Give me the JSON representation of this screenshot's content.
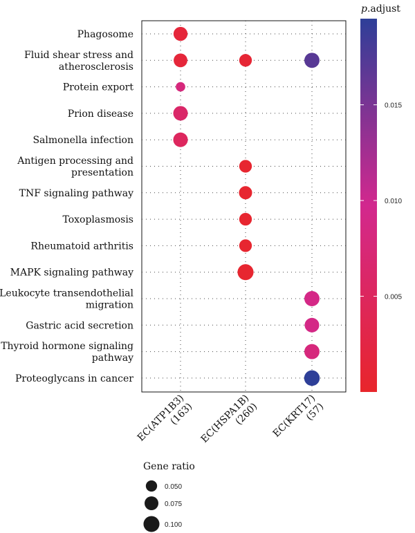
{
  "chart_data": {
    "type": "scatter",
    "subtype": "dot-plot",
    "x_categories": [
      [
        "EC(ATP1B3)",
        "(163)"
      ],
      [
        "EC(HSPA1B)",
        "(260)"
      ],
      [
        "EC(KRT17)",
        "(57)"
      ]
    ],
    "y_terms": [
      [
        "Phagosome"
      ],
      [
        "Fluid shear stress and",
        "atherosclerosis"
      ],
      [
        "Protein export"
      ],
      [
        "Prion disease"
      ],
      [
        "Salmonella infection"
      ],
      [
        "Antigen processing and",
        "presentation"
      ],
      [
        "TNF signaling pathway"
      ],
      [
        "Toxoplasmosis"
      ],
      [
        "Rheumatoid arthritis"
      ],
      [
        "MAPK signaling pathway"
      ],
      [
        "Leukocyte transendothelial",
        "migration"
      ],
      [
        "Gastric acid secretion"
      ],
      [
        "Thyroid hormone signaling",
        "pathway"
      ],
      [
        "Proteoglycans in cancer"
      ]
    ],
    "points": [
      {
        "x": 0,
        "y": 0,
        "gene_ratio": 0.077,
        "p_adjust": 0.0015
      },
      {
        "x": 0,
        "y": 1,
        "gene_ratio": 0.074,
        "p_adjust": 0.0015
      },
      {
        "x": 1,
        "y": 1,
        "gene_ratio": 0.063,
        "p_adjust": 0.001
      },
      {
        "x": 2,
        "y": 1,
        "gene_ratio": 0.09,
        "p_adjust": 0.017
      },
      {
        "x": 0,
        "y": 2,
        "gene_ratio": 0.035,
        "p_adjust": 0.008
      },
      {
        "x": 0,
        "y": 3,
        "gene_ratio": 0.083,
        "p_adjust": 0.006
      },
      {
        "x": 0,
        "y": 4,
        "gene_ratio": 0.083,
        "p_adjust": 0.005
      },
      {
        "x": 1,
        "y": 5,
        "gene_ratio": 0.063,
        "p_adjust": 0.0005
      },
      {
        "x": 1,
        "y": 6,
        "gene_ratio": 0.068,
        "p_adjust": 0.0005
      },
      {
        "x": 1,
        "y": 7,
        "gene_ratio": 0.063,
        "p_adjust": 0.0005
      },
      {
        "x": 1,
        "y": 8,
        "gene_ratio": 0.063,
        "p_adjust": 0.0005
      },
      {
        "x": 1,
        "y": 9,
        "gene_ratio": 0.1,
        "p_adjust": 0.0005
      },
      {
        "x": 2,
        "y": 10,
        "gene_ratio": 0.09,
        "p_adjust": 0.009
      },
      {
        "x": 2,
        "y": 11,
        "gene_ratio": 0.083,
        "p_adjust": 0.009
      },
      {
        "x": 2,
        "y": 12,
        "gene_ratio": 0.09,
        "p_adjust": 0.008
      },
      {
        "x": 2,
        "y": 13,
        "gene_ratio": 0.095,
        "p_adjust": 0.0195
      }
    ],
    "color_scale": {
      "title_italic": "p",
      "title_rest": ".adjust",
      "min": 0.0,
      "max": 0.0195,
      "ticks": [
        0.005,
        0.01,
        0.015
      ],
      "tick_labels": [
        "0.005",
        "0.010",
        "0.015"
      ],
      "low_color": "#e8262b",
      "mid_color": "#d2288e",
      "high_color": "#2e3f98"
    },
    "size_legend": {
      "title": "Gene ratio",
      "values": [
        0.05,
        0.075,
        0.1
      ],
      "labels": [
        "0.050",
        "0.075",
        "0.100"
      ]
    },
    "grid": true
  }
}
